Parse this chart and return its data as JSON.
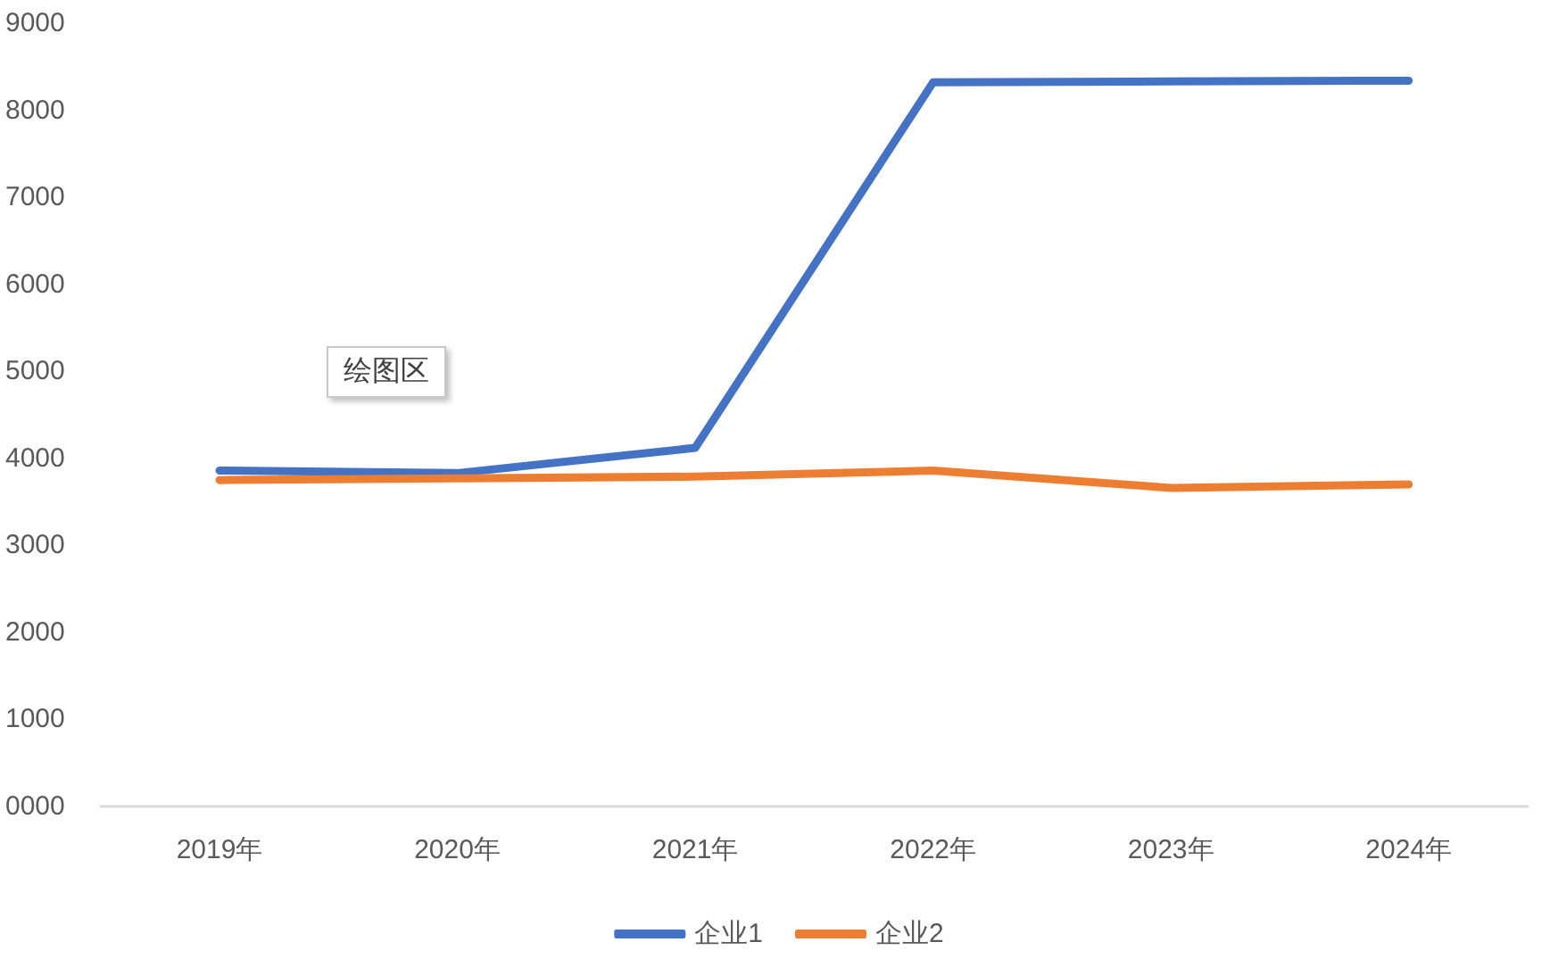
{
  "chart_data": {
    "type": "line",
    "categories": [
      "2019年",
      "2020年",
      "2021年",
      "2022年",
      "2023年",
      "2024年"
    ],
    "series": [
      {
        "name": "企业1",
        "color": "#4472c4",
        "values": [
          3860,
          3830,
          4120,
          8320,
          8330,
          8340
        ]
      },
      {
        "name": "企业2",
        "color": "#ed7d31",
        "values": [
          3750,
          3770,
          3790,
          3860,
          3660,
          3700
        ]
      }
    ],
    "ylim": [
      0,
      9000
    ],
    "yticks": [
      {
        "value": 0,
        "label": "0000"
      },
      1000,
      2000,
      3000,
      4000,
      5000,
      6000,
      7000,
      8000,
      9000
    ],
    "legend": "bottom",
    "grid": false,
    "marker": "none",
    "line_style": "solid",
    "annotations": [
      "绘图区"
    ]
  }
}
